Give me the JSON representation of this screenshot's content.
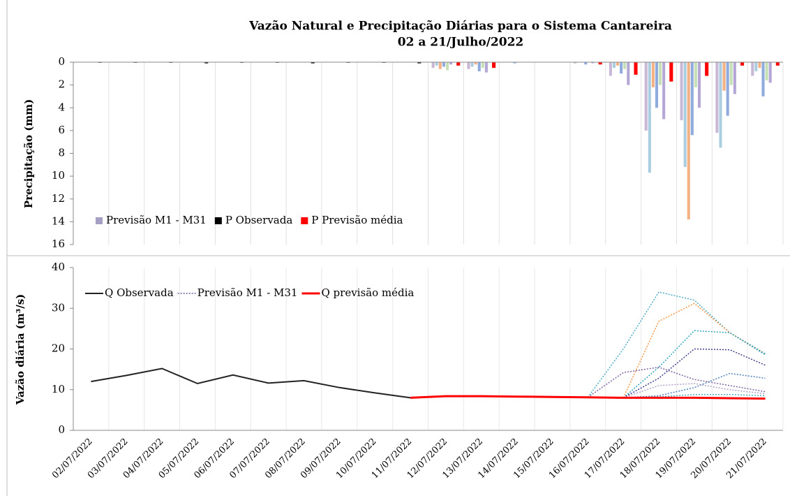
{
  "chart_data": [
    {
      "type": "bar",
      "title": "Vazão Natural e Precipitação Diárias para o Sistema Cantareira",
      "subtitle": "02 a 21/Julho/2022",
      "y_label": "Precipitação (mm)",
      "inverted": true,
      "categories": [
        "02/07/2022",
        "03/07/2022",
        "04/07/2022",
        "05/07/2022",
        "06/07/2022",
        "07/07/2022",
        "08/07/2022",
        "09/07/2022",
        "10/07/2022",
        "11/07/2022",
        "12/07/2022",
        "13/07/2022",
        "14/07/2022",
        "15/07/2022",
        "16/07/2022",
        "17/07/2022",
        "18/07/2022",
        "19/07/2022",
        "20/07/2022",
        "21/07/2022"
      ],
      "ylim": [
        0,
        16
      ],
      "yticks": [
        0,
        2,
        4,
        6,
        8,
        10,
        12,
        14,
        16
      ],
      "grid": true,
      "series": [
        {
          "name": "Previsão M1 - M31",
          "color": "#a59fc4",
          "members": [
            {
              "color": "#c9b7d6",
              "values": [
                null,
                null,
                null,
                null,
                null,
                null,
                null,
                null,
                null,
                null,
                0.5,
                0.6,
                0,
                0,
                0.1,
                1.2,
                6.0,
                5.1,
                6.2,
                1.2
              ]
            },
            {
              "color": "#aacde0",
              "values": [
                null,
                null,
                null,
                null,
                null,
                null,
                null,
                null,
                null,
                null,
                0.3,
                0.4,
                0,
                0,
                0,
                0.5,
                9.7,
                9.2,
                7.5,
                0.8
              ]
            },
            {
              "color": "#f4b183",
              "values": [
                null,
                null,
                null,
                null,
                null,
                null,
                null,
                null,
                null,
                null,
                0.6,
                0.2,
                0,
                0,
                0,
                0.3,
                2.2,
                13.8,
                2.5,
                0.5
              ]
            },
            {
              "color": "#8faadc",
              "values": [
                null,
                null,
                null,
                null,
                null,
                null,
                null,
                null,
                null,
                null,
                0.4,
                0.8,
                0.1,
                0,
                0.2,
                1.0,
                4.0,
                6.4,
                4.7,
                3.0
              ]
            },
            {
              "color": "#c5e0b4",
              "values": [
                null,
                null,
                null,
                null,
                null,
                null,
                null,
                null,
                null,
                null,
                0.7,
                0.5,
                0,
                0,
                0,
                0.6,
                2.0,
                2.2,
                2.0,
                1.6
              ]
            },
            {
              "color": "#b4a7d6",
              "values": [
                null,
                null,
                null,
                null,
                null,
                null,
                null,
                null,
                null,
                null,
                0.2,
                0.9,
                0,
                0,
                0.1,
                2.0,
                5.0,
                4.0,
                2.8,
                1.8
              ]
            }
          ]
        },
        {
          "name": "P Observada",
          "color": "#000000",
          "values": [
            0.05,
            0.05,
            0.05,
            0.1,
            0.05,
            0.05,
            0.1,
            0.05,
            0.05,
            0.1,
            null,
            null,
            null,
            null,
            null,
            null,
            null,
            null,
            null,
            null
          ]
        },
        {
          "name": "P Previsão média",
          "color": "#ff0000",
          "values": [
            null,
            null,
            null,
            null,
            null,
            null,
            null,
            null,
            null,
            null,
            0.3,
            0.5,
            0,
            0,
            0.2,
            1.1,
            1.7,
            1.2,
            0.3,
            0.3
          ]
        }
      ]
    },
    {
      "type": "line",
      "y_label": "Vazão diária (m³/s)",
      "ylim": [
        0,
        40
      ],
      "yticks": [
        0,
        10,
        20,
        30,
        40
      ],
      "series": [
        {
          "name": "Q Observada",
          "color": "#222222",
          "values": [
            12.0,
            13.5,
            15.2,
            11.5,
            13.6,
            11.6,
            12.2,
            10.5,
            9.2,
            8.0,
            null,
            null,
            null,
            null,
            null,
            null,
            null,
            null,
            null,
            null
          ]
        },
        {
          "name": "Previsão M1 - M31",
          "color": "#8e86b8",
          "dotted": true,
          "members": [
            {
              "color": "#4bacc6",
              "values": [
                null,
                null,
                null,
                null,
                null,
                null,
                null,
                null,
                null,
                null,
                null,
                null,
                null,
                null,
                8.1,
                20.0,
                34.0,
                32.0,
                24.0,
                18.5
              ]
            },
            {
              "color": "#f79646",
              "values": [
                null,
                null,
                null,
                null,
                null,
                null,
                null,
                null,
                null,
                null,
                null,
                null,
                null,
                null,
                null,
                8.0,
                26.8,
                31.2,
                24.0,
                18.8
              ]
            },
            {
              "color": "#31a3bd",
              "values": [
                null,
                null,
                null,
                null,
                null,
                null,
                null,
                null,
                null,
                null,
                null,
                null,
                null,
                null,
                null,
                8.0,
                15.5,
                24.5,
                24.0,
                18.8
              ]
            },
            {
              "color": "#8064a2",
              "values": [
                null,
                null,
                null,
                null,
                null,
                null,
                null,
                null,
                null,
                null,
                null,
                null,
                null,
                null,
                8.1,
                14.2,
                15.5,
                12.5,
                11.0,
                9.5
              ]
            },
            {
              "color": "#3f3f8f",
              "values": [
                null,
                null,
                null,
                null,
                null,
                null,
                null,
                null,
                null,
                null,
                null,
                null,
                null,
                null,
                null,
                8.0,
                12.8,
                20.0,
                19.8,
                16.0
              ]
            },
            {
              "color": "#4f81bd",
              "values": [
                null,
                null,
                null,
                null,
                null,
                null,
                null,
                null,
                null,
                null,
                null,
                null,
                null,
                null,
                null,
                8.0,
                8.5,
                10.5,
                14.0,
                12.8
              ]
            },
            {
              "color": "#b3a2c7",
              "values": [
                null,
                null,
                null,
                null,
                null,
                null,
                null,
                null,
                null,
                null,
                null,
                null,
                null,
                null,
                null,
                8.0,
                11.0,
                11.5,
                10.0,
                9.0
              ]
            },
            {
              "color": "#4bacc6",
              "values": [
                null,
                null,
                null,
                null,
                null,
                null,
                null,
                null,
                null,
                null,
                null,
                null,
                null,
                null,
                null,
                8.0,
                8.2,
                8.8,
                8.8,
                8.5
              ]
            }
          ]
        },
        {
          "name": "Q previsão média",
          "color": "#ff0000",
          "width": 3,
          "values": [
            null,
            null,
            null,
            null,
            null,
            null,
            null,
            null,
            null,
            8.0,
            8.4,
            8.4,
            8.3,
            8.2,
            8.1,
            8.0,
            8.0,
            8.0,
            7.9,
            7.8
          ]
        }
      ]
    }
  ]
}
